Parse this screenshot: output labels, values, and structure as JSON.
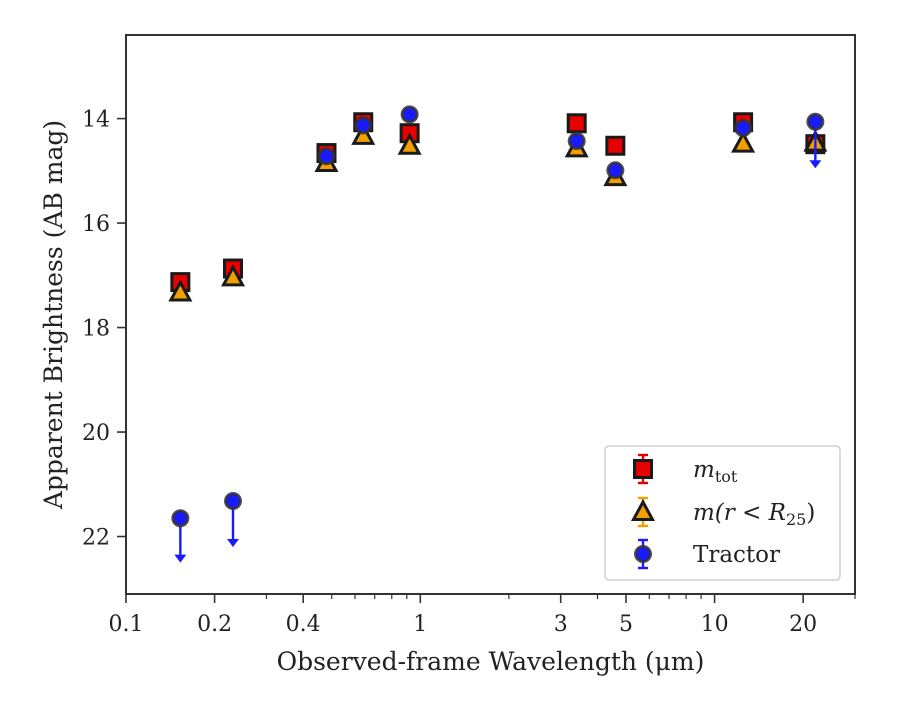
{
  "chart_data": {
    "type": "scatter",
    "title": "",
    "xlabel": "Observed-frame Wavelength (μm)",
    "ylabel": "Apparent Brightness (AB mag)",
    "xscale": "log",
    "xlim": [
      0.1,
      30
    ],
    "ylim": [
      23.1,
      12.4
    ],
    "y_inverted": true,
    "grid": false,
    "legend_position": "lower-right",
    "x_ticks": [
      {
        "value": 0.1,
        "label": "0.1"
      },
      {
        "value": 0.2,
        "label": "0.2"
      },
      {
        "value": 0.4,
        "label": "0.4"
      },
      {
        "value": 1,
        "label": "1"
      },
      {
        "value": 3,
        "label": "3"
      },
      {
        "value": 5,
        "label": "5"
      },
      {
        "value": 10,
        "label": "10"
      },
      {
        "value": 20,
        "label": "20"
      }
    ],
    "x_minor_ticks": [
      0.3,
      0.5,
      0.6,
      0.7,
      0.8,
      0.9,
      2,
      4,
      6,
      7,
      8,
      9,
      30
    ],
    "y_ticks": [
      {
        "value": 14,
        "label": "14"
      },
      {
        "value": 16,
        "label": "16"
      },
      {
        "value": 18,
        "label": "18"
      },
      {
        "value": 20,
        "label": "20"
      },
      {
        "value": 22,
        "label": "22"
      }
    ],
    "series": [
      {
        "name": "m_tot",
        "legend_main": "m",
        "legend_sub": "tot",
        "marker": "square",
        "color": "#e60000",
        "edge_color": "#1a1a1a",
        "points": [
          {
            "x": 0.153,
            "y": 17.13
          },
          {
            "x": 0.231,
            "y": 16.87
          },
          {
            "x": 0.48,
            "y": 14.66
          },
          {
            "x": 0.64,
            "y": 14.07
          },
          {
            "x": 0.92,
            "y": 14.28
          },
          {
            "x": 3.4,
            "y": 14.09
          },
          {
            "x": 4.6,
            "y": 14.52
          },
          {
            "x": 12.5,
            "y": 14.07
          },
          {
            "x": 22.0,
            "y": 14.49
          }
        ]
      },
      {
        "name": "m(r < R25)",
        "legend_main": "m(r < R",
        "legend_sub": "25",
        "legend_end": ")",
        "marker": "triangle",
        "color": "#f2a000",
        "edge_color": "#1a1a1a",
        "points": [
          {
            "x": 0.153,
            "y": 17.33
          },
          {
            "x": 0.231,
            "y": 17.04
          },
          {
            "x": 0.48,
            "y": 14.85
          },
          {
            "x": 0.64,
            "y": 14.33
          },
          {
            "x": 0.92,
            "y": 14.52
          },
          {
            "x": 3.4,
            "y": 14.57
          },
          {
            "x": 4.6,
            "y": 15.12
          },
          {
            "x": 12.5,
            "y": 14.48
          },
          {
            "x": 22.0,
            "y": 14.46
          }
        ]
      },
      {
        "name": "Tractor",
        "legend_main": "Tractor",
        "marker": "circle",
        "color": "#1a1aff",
        "edge_color": "#333333",
        "points": [
          {
            "x": 0.153,
            "y": 21.65,
            "upper_limit": true,
            "limit_to": 22.5
          },
          {
            "x": 0.231,
            "y": 21.32,
            "upper_limit": true,
            "limit_to": 22.2
          },
          {
            "x": 0.48,
            "y": 14.72
          },
          {
            "x": 0.64,
            "y": 14.13
          },
          {
            "x": 0.92,
            "y": 13.92
          },
          {
            "x": 3.4,
            "y": 14.43
          },
          {
            "x": 4.6,
            "y": 14.99
          },
          {
            "x": 12.5,
            "y": 14.18
          },
          {
            "x": 22.0,
            "y": 14.06,
            "upper_limit": true,
            "limit_to": 14.95
          }
        ]
      }
    ]
  }
}
